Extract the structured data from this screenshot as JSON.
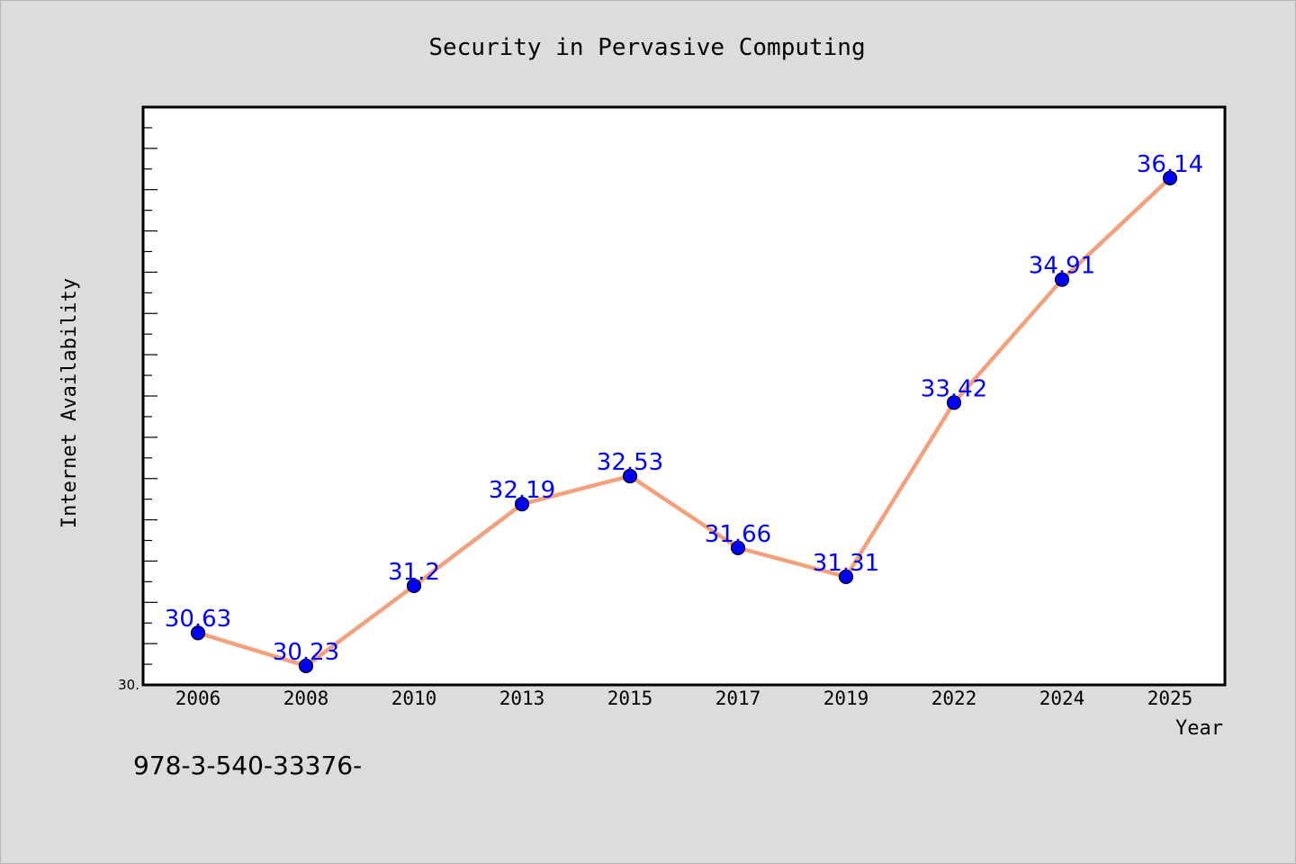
{
  "chart_data": {
    "type": "line",
    "title": "Security in Pervasive Computing",
    "xlabel": "Year",
    "ylabel": "Internet Availability",
    "categories": [
      "2006",
      "2008",
      "2010",
      "2013",
      "2015",
      "2017",
      "2019",
      "2022",
      "2024",
      "2025"
    ],
    "series": [
      {
        "values": [
          30.63,
          30.23,
          31.2,
          32.19,
          32.53,
          31.66,
          31.31,
          33.42,
          34.91,
          36.14
        ],
        "data_labels": [
          "30.63",
          "30.23",
          "31.2",
          "32.19",
          "32.53",
          "31.66",
          "31.31",
          "33.42",
          "34.91",
          "36.14"
        ]
      }
    ],
    "ylim": [
      30.0,
      37.0
    ],
    "y_min_tick_label": "30.",
    "grid": false,
    "line_color": "#f4a07c",
    "marker_color": "#0000ff",
    "label_color": "#0000ff"
  },
  "footer": {
    "caption": "978-3-540-33376-"
  }
}
